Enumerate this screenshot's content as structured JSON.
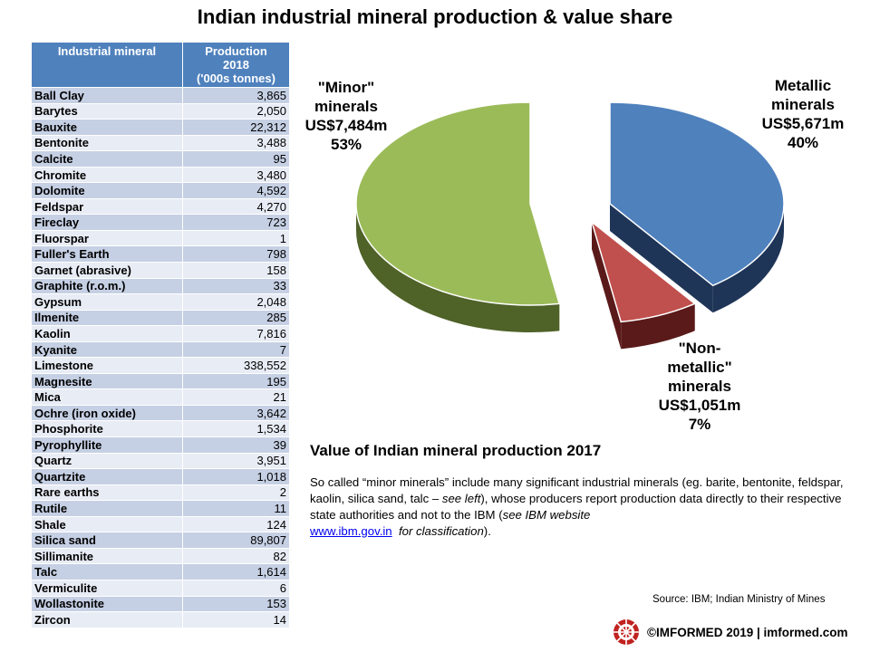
{
  "title": "Indian industrial mineral production & value share",
  "table": {
    "headers": {
      "mineral": "Industrial mineral",
      "production_line1": "Production",
      "production_line2": "2018",
      "production_line3": "('000s tonnes)"
    },
    "rows": [
      {
        "name": "Ball Clay",
        "value": "3,865"
      },
      {
        "name": "Barytes",
        "value": "2,050"
      },
      {
        "name": "Bauxite",
        "value": "22,312"
      },
      {
        "name": "Bentonite",
        "value": "3,488"
      },
      {
        "name": "Calcite",
        "value": "95"
      },
      {
        "name": "Chromite",
        "value": "3,480"
      },
      {
        "name": "Dolomite",
        "value": "4,592"
      },
      {
        "name": "Feldspar",
        "value": "4,270"
      },
      {
        "name": "Fireclay",
        "value": "723"
      },
      {
        "name": "Fluorspar",
        "value": "1"
      },
      {
        "name": "Fuller's Earth",
        "value": "798"
      },
      {
        "name": "Garnet (abrasive)",
        "value": "158"
      },
      {
        "name": "Graphite (r.o.m.)",
        "value": "33"
      },
      {
        "name": "Gypsum",
        "value": "2,048"
      },
      {
        "name": "Ilmenite",
        "value": "285"
      },
      {
        "name": "Kaolin",
        "value": "7,816"
      },
      {
        "name": "Kyanite",
        "value": "7"
      },
      {
        "name": "Limestone",
        "value": "338,552"
      },
      {
        "name": "Magnesite",
        "value": "195"
      },
      {
        "name": "Mica",
        "value": "21"
      },
      {
        "name": "Ochre (iron oxide)",
        "value": "3,642"
      },
      {
        "name": "Phosphorite",
        "value": "1,534"
      },
      {
        "name": "Pyrophyllite",
        "value": "39"
      },
      {
        "name": "Quartz",
        "value": "3,951"
      },
      {
        "name": "Quartzite",
        "value": "1,018"
      },
      {
        "name": "Rare earths",
        "value": "2"
      },
      {
        "name": "Rutile",
        "value": "11"
      },
      {
        "name": "Shale",
        "value": "124"
      },
      {
        "name": "Silica sand",
        "value": "89,807"
      },
      {
        "name": "Sillimanite",
        "value": "82"
      },
      {
        "name": "Talc",
        "value": "1,614"
      },
      {
        "name": "Vermiculite",
        "value": "6"
      },
      {
        "name": "Wollastonite",
        "value": "153"
      },
      {
        "name": "Zircon",
        "value": "14"
      }
    ]
  },
  "chart_data": {
    "type": "pie",
    "title": "Value of Indian mineral production 2017",
    "slices": [
      {
        "name_lines": [
          "Metallic",
          "minerals"
        ],
        "value_label": "US$5,671m",
        "percent_label": "40%",
        "value": 5671,
        "percent": 40,
        "color": "#4f81bd",
        "side_color": "#1f3557",
        "exploded": true
      },
      {
        "name_lines": [
          "\"Non-",
          "metallic\"",
          "minerals"
        ],
        "value_label": "US$1,051m",
        "percent_label": "7%",
        "value": 1051,
        "percent": 7,
        "color": "#c0504d",
        "side_color": "#5a1a19",
        "exploded": true
      },
      {
        "name_lines": [
          "\"Minor\"",
          "minerals"
        ],
        "value_label": "US$7,484m",
        "percent_label": "53%",
        "value": 7484,
        "percent": 53,
        "color": "#9bbb59",
        "side_color": "#4f6228",
        "exploded": false
      }
    ]
  },
  "note": {
    "part1": "So called “minor minerals” include many significant industrial minerals (eg. barite, bentonite, feldspar, kaolin, silica sand, talc – ",
    "see_left": "see left",
    "part2": "), whose producers report production data directly to their respective state authorities and not to the IBM (",
    "see_ibm": "see IBM website",
    "link": "www.ibm.gov.in",
    "for_class": "for classification",
    "part3": ")."
  },
  "source": "Source: IBM;  Indian Ministry of Mines",
  "footer": {
    "copyright": "©IMFORMED 2019  | imformed.com",
    "logo_icon": "imformed-logo-icon"
  }
}
